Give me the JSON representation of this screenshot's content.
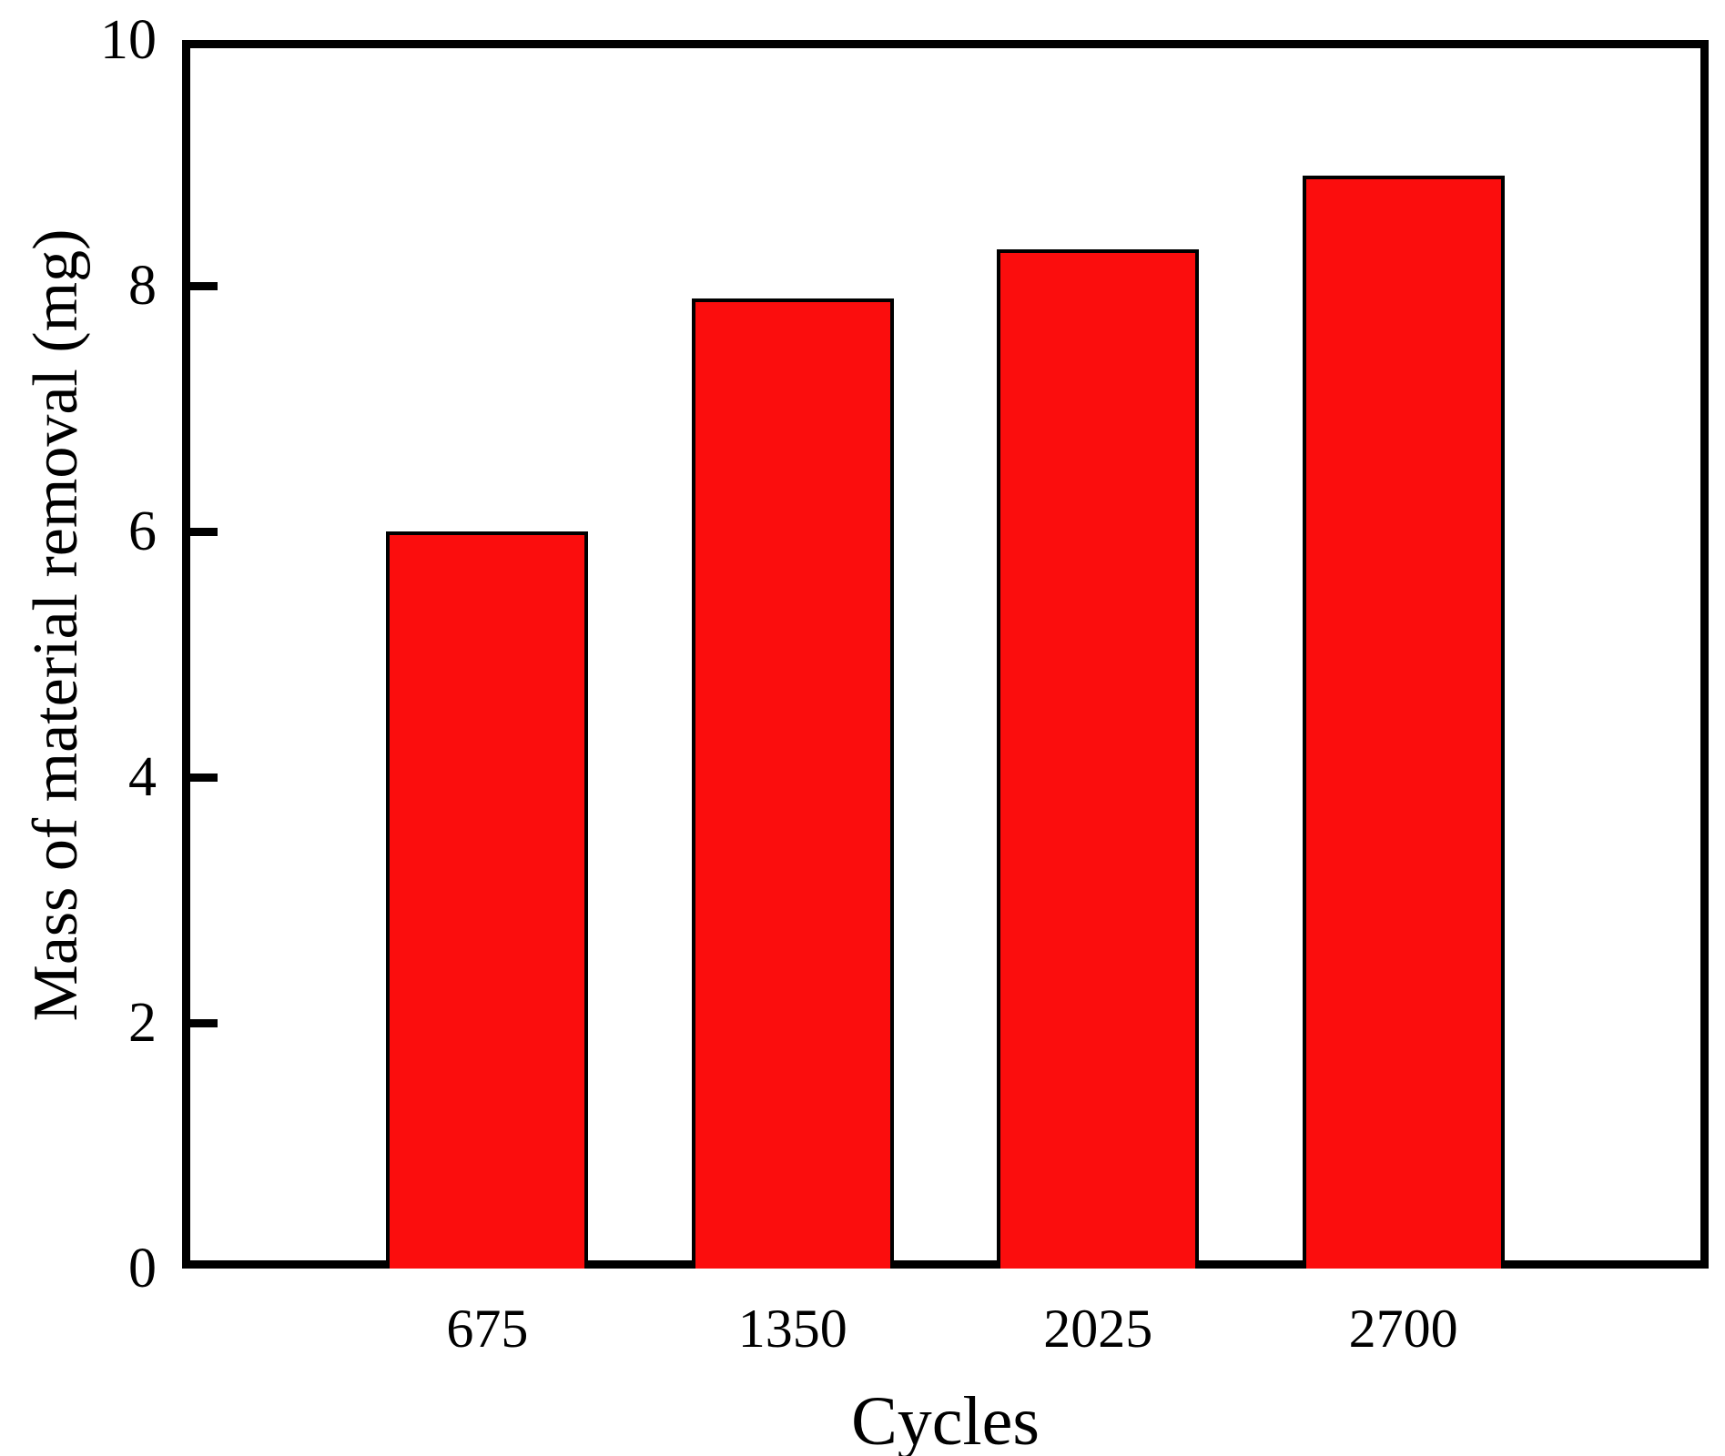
{
  "chart_data": {
    "type": "bar",
    "title": "",
    "categories": [
      "675",
      "1350",
      "2025",
      "2700"
    ],
    "values": [
      6.0,
      7.9,
      8.3,
      8.9
    ],
    "xlabel": "Cycles",
    "ylabel": "Mass of material removal (mg)",
    "ylim": [
      0,
      10
    ],
    "yticks": [
      0,
      2,
      4,
      6,
      8,
      10
    ],
    "grid": false,
    "legend_position": "none",
    "bar_fill_color": "#fb0d0d",
    "bar_border_color": "#000000",
    "axis_color": "#000000",
    "text_color": "#000000",
    "background_color": "#ffffff"
  }
}
